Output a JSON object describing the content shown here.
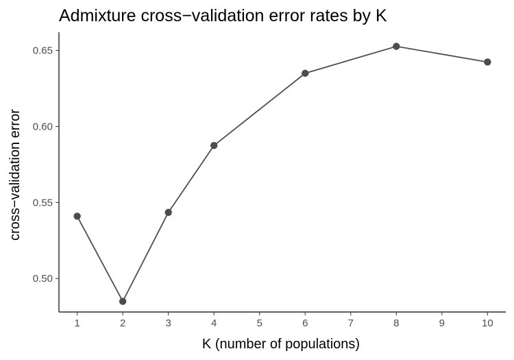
{
  "chart_data": {
    "type": "line",
    "title": "Admixture cross−validation error rates by K",
    "xlabel": "K (number of populations)",
    "ylabel": "cross−validation error",
    "x_ticks": [
      1,
      2,
      3,
      4,
      5,
      6,
      7,
      8,
      9,
      10
    ],
    "y_ticks": [
      "0.50",
      "0.55",
      "0.60",
      "0.65"
    ],
    "xlim": [
      0.6,
      10.4
    ],
    "ylim": [
      0.478,
      0.662
    ],
    "grid": false,
    "legend": "none",
    "series_color": "#4d4d4d",
    "series": [
      {
        "x": [
          1,
          2,
          3,
          4,
          6,
          8,
          10
        ],
        "y": [
          0.541,
          0.485,
          0.5435,
          0.5875,
          0.635,
          0.6527,
          0.6424
        ]
      }
    ]
  }
}
